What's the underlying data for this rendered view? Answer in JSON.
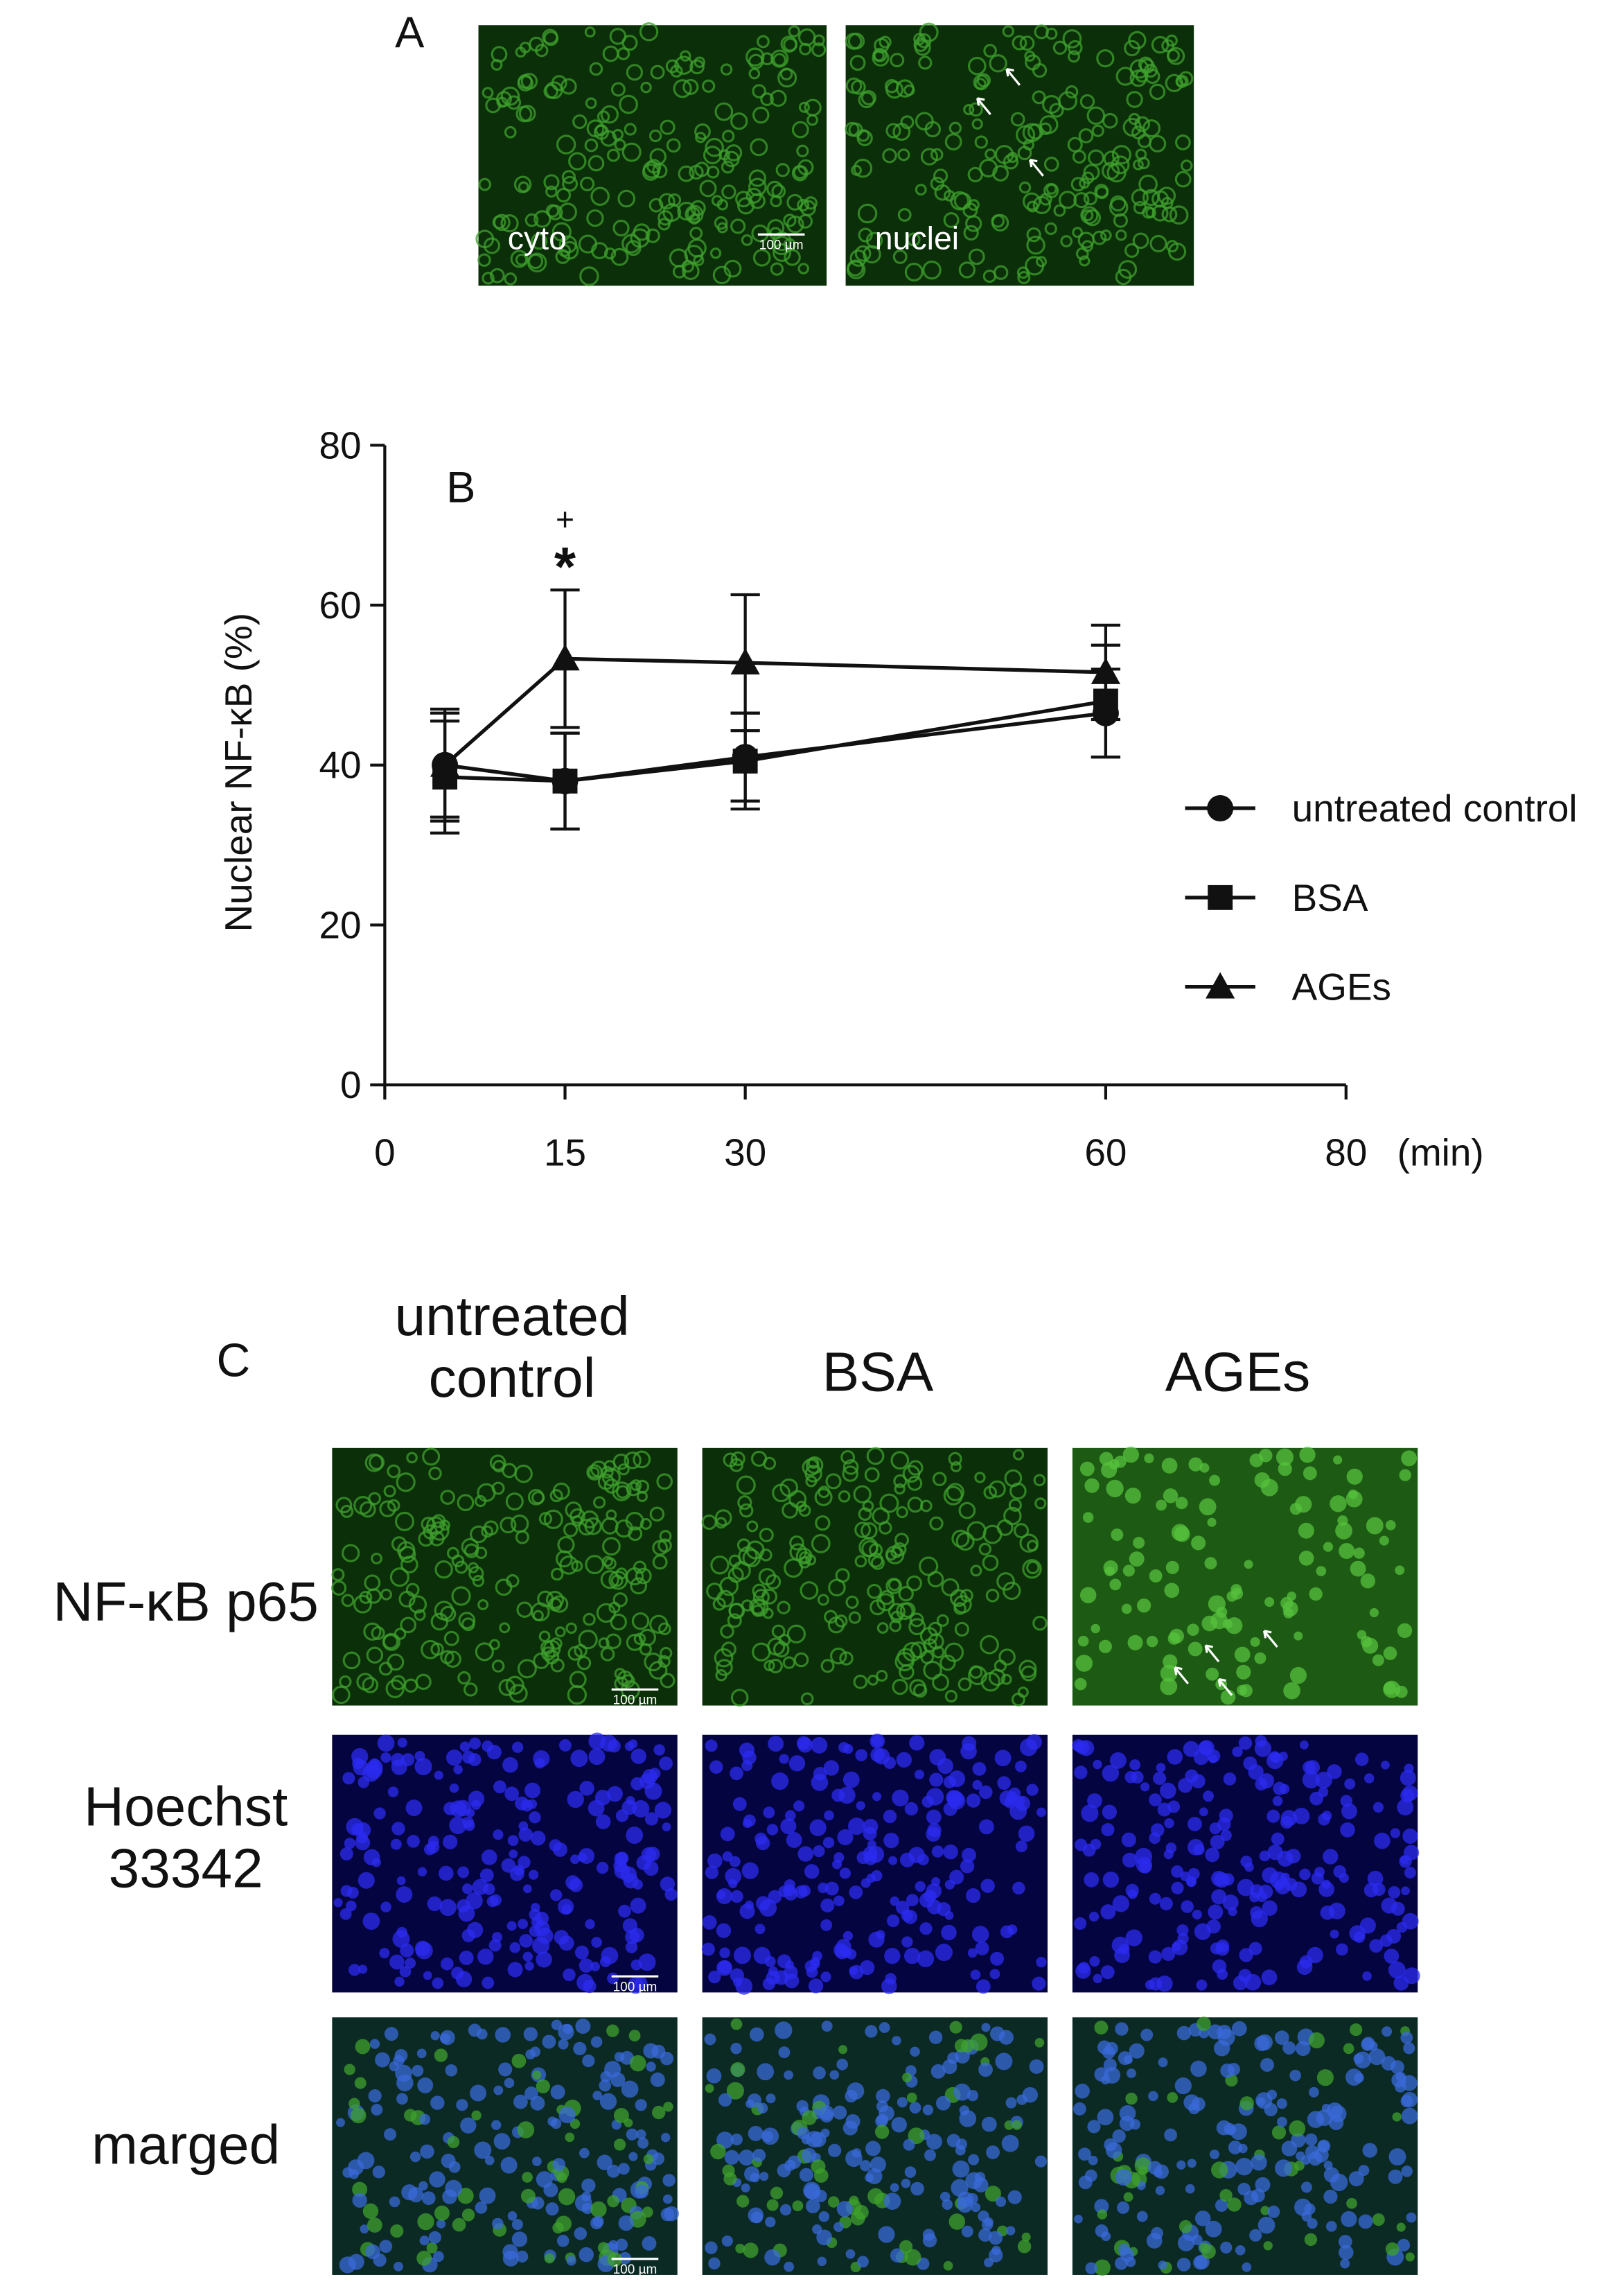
{
  "panel_a": {
    "label": "A",
    "images": [
      "cyto",
      "nuclei"
    ],
    "scale_bar": "100 µm"
  },
  "chart_data": {
    "type": "line",
    "panel_label": "B",
    "y_label": "Nuclear NF-κB (%)",
    "x_label": "(min)",
    "x": [
      5,
      15,
      30,
      60
    ],
    "series": [
      {
        "name": "untreated control",
        "color": "#111111",
        "marker": "circle",
        "values": [
          40,
          38,
          41,
          46.5
        ],
        "errors": [
          7,
          6,
          5.5,
          5.5
        ]
      },
      {
        "name": "BSA",
        "color": "#111111",
        "marker": "square",
        "values": [
          38.5,
          38,
          40.5,
          48
        ],
        "errors": [
          7,
          6,
          6,
          7
        ]
      },
      {
        "name": "AGEs",
        "color": "#111111",
        "marker": "triangle",
        "values": [
          40,
          53.3,
          52.8,
          51.6
        ],
        "errors": [
          6.5,
          8.6,
          8.5,
          5.9
        ]
      }
    ],
    "annotations": [
      {
        "text": "+",
        "x": 15
      },
      {
        "text": "*",
        "x": 15
      }
    ],
    "xlim": [
      0,
      80
    ],
    "xticks": [
      0,
      15,
      30,
      60,
      80
    ],
    "ylim": [
      0,
      80
    ],
    "yticks": [
      0,
      20,
      40,
      60,
      80
    ],
    "grid": false
  },
  "panel_c": {
    "label": "C",
    "columns": [
      [
        "untreated",
        "control"
      ],
      [
        "BSA"
      ],
      [
        "AGEs"
      ]
    ],
    "rows": [
      [
        "NF-κB p65"
      ],
      [
        "Hoechst",
        "33342"
      ],
      [
        "marged"
      ]
    ],
    "scale_bar": "100 µm"
  }
}
